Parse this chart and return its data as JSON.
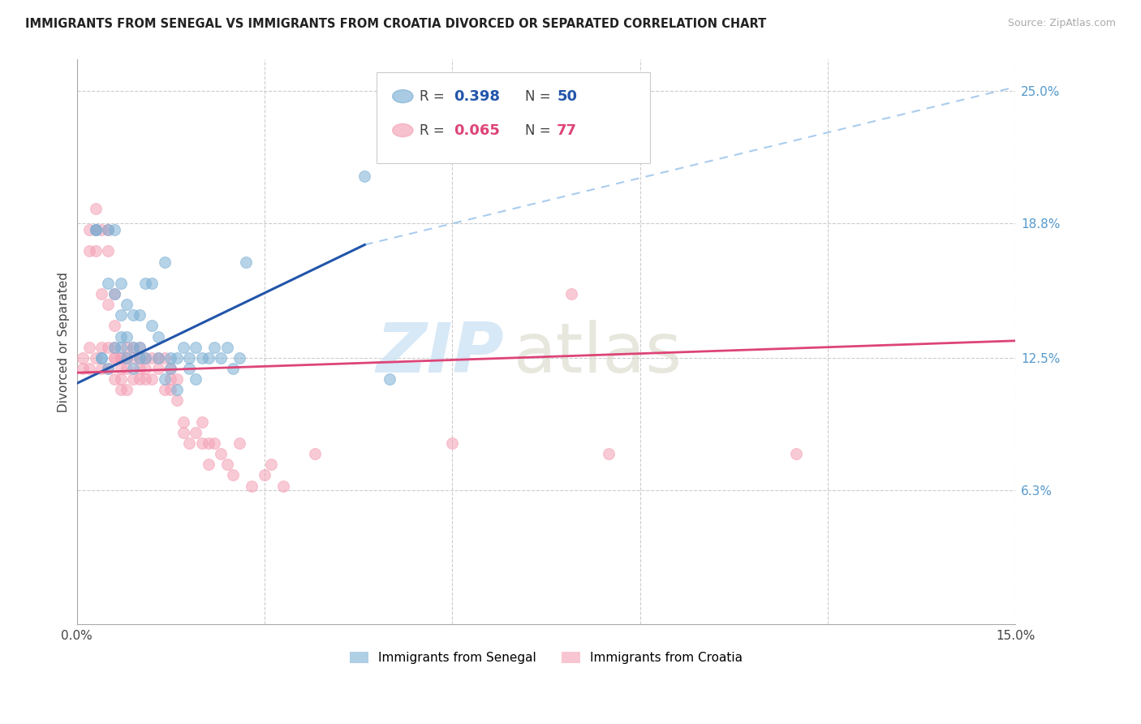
{
  "title": "IMMIGRANTS FROM SENEGAL VS IMMIGRANTS FROM CROATIA DIVORCED OR SEPARATED CORRELATION CHART",
  "source": "Source: ZipAtlas.com",
  "ylabel": "Divorced or Separated",
  "xlim": [
    0.0,
    0.15
  ],
  "ylim": [
    0.0,
    0.265
  ],
  "xticks": [
    0.0,
    0.03,
    0.06,
    0.09,
    0.12,
    0.15
  ],
  "xtick_labels": [
    "0.0%",
    "",
    "",
    "",
    "",
    "15.0%"
  ],
  "yticks_right": [
    0.063,
    0.125,
    0.188,
    0.25
  ],
  "ytick_labels_right": [
    "6.3%",
    "12.5%",
    "18.8%",
    "25.0%"
  ],
  "legend_label_blue": "Immigrants from Senegal",
  "legend_label_pink": "Immigrants from Croatia",
  "blue_color": "#7BAFD4",
  "pink_color": "#F4A0B5",
  "blue_line_color": "#2255AA",
  "pink_line_color": "#DD4477",
  "dashed_line_color": "#AACCEE",
  "blue_line": [
    0.0,
    0.113,
    0.046,
    0.178
  ],
  "blue_dash_line": [
    0.046,
    0.178,
    0.15,
    0.252
  ],
  "pink_line": [
    0.0,
    0.118,
    0.15,
    0.133
  ],
  "blue_scatter_x": [
    0.003,
    0.003,
    0.004,
    0.004,
    0.005,
    0.005,
    0.005,
    0.006,
    0.006,
    0.006,
    0.007,
    0.007,
    0.007,
    0.007,
    0.008,
    0.008,
    0.008,
    0.009,
    0.009,
    0.009,
    0.01,
    0.01,
    0.01,
    0.011,
    0.011,
    0.012,
    0.012,
    0.013,
    0.013,
    0.014,
    0.014,
    0.015,
    0.015,
    0.016,
    0.016,
    0.017,
    0.018,
    0.018,
    0.019,
    0.019,
    0.02,
    0.021,
    0.022,
    0.023,
    0.024,
    0.025,
    0.026,
    0.027,
    0.05,
    0.046
  ],
  "blue_scatter_y": [
    0.185,
    0.185,
    0.125,
    0.125,
    0.185,
    0.16,
    0.12,
    0.155,
    0.13,
    0.185,
    0.145,
    0.135,
    0.16,
    0.13,
    0.15,
    0.135,
    0.125,
    0.145,
    0.13,
    0.12,
    0.145,
    0.13,
    0.125,
    0.16,
    0.125,
    0.16,
    0.14,
    0.135,
    0.125,
    0.17,
    0.115,
    0.125,
    0.12,
    0.125,
    0.11,
    0.13,
    0.125,
    0.12,
    0.13,
    0.115,
    0.125,
    0.125,
    0.13,
    0.125,
    0.13,
    0.12,
    0.125,
    0.17,
    0.115,
    0.21
  ],
  "pink_scatter_x": [
    0.001,
    0.001,
    0.002,
    0.002,
    0.002,
    0.002,
    0.003,
    0.003,
    0.003,
    0.003,
    0.004,
    0.004,
    0.004,
    0.004,
    0.005,
    0.005,
    0.005,
    0.005,
    0.005,
    0.006,
    0.006,
    0.006,
    0.006,
    0.006,
    0.006,
    0.007,
    0.007,
    0.007,
    0.007,
    0.007,
    0.008,
    0.008,
    0.008,
    0.008,
    0.009,
    0.009,
    0.009,
    0.01,
    0.01,
    0.01,
    0.01,
    0.011,
    0.011,
    0.011,
    0.012,
    0.012,
    0.013,
    0.013,
    0.014,
    0.014,
    0.015,
    0.015,
    0.015,
    0.016,
    0.016,
    0.017,
    0.017,
    0.018,
    0.019,
    0.02,
    0.02,
    0.021,
    0.021,
    0.022,
    0.023,
    0.024,
    0.025,
    0.026,
    0.028,
    0.03,
    0.031,
    0.033,
    0.038,
    0.06,
    0.079,
    0.085,
    0.115
  ],
  "pink_scatter_y": [
    0.125,
    0.12,
    0.185,
    0.175,
    0.13,
    0.12,
    0.195,
    0.185,
    0.175,
    0.125,
    0.185,
    0.155,
    0.13,
    0.12,
    0.185,
    0.175,
    0.15,
    0.13,
    0.12,
    0.155,
    0.14,
    0.13,
    0.125,
    0.115,
    0.125,
    0.125,
    0.115,
    0.11,
    0.125,
    0.12,
    0.13,
    0.125,
    0.12,
    0.11,
    0.13,
    0.125,
    0.115,
    0.13,
    0.125,
    0.12,
    0.115,
    0.125,
    0.12,
    0.115,
    0.125,
    0.115,
    0.125,
    0.12,
    0.11,
    0.125,
    0.115,
    0.11,
    0.12,
    0.115,
    0.105,
    0.09,
    0.095,
    0.085,
    0.09,
    0.095,
    0.085,
    0.085,
    0.075,
    0.085,
    0.08,
    0.075,
    0.07,
    0.085,
    0.065,
    0.07,
    0.075,
    0.065,
    0.08,
    0.085,
    0.155,
    0.08,
    0.08
  ]
}
